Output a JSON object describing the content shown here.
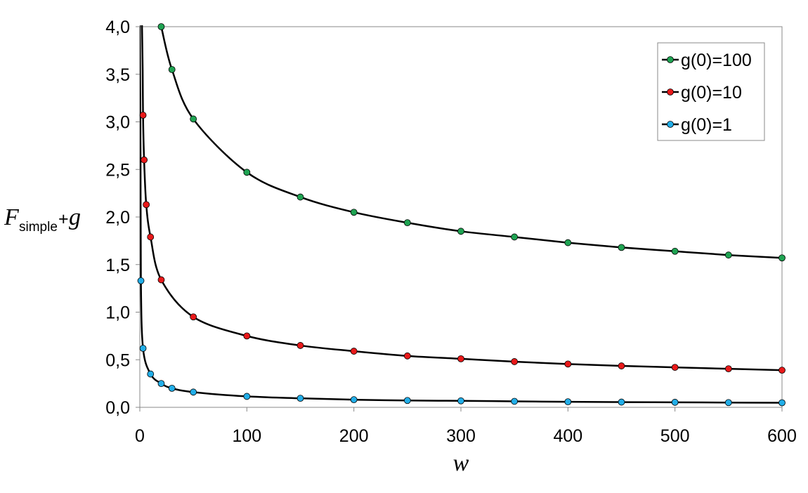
{
  "chart_data": {
    "type": "line",
    "title": "",
    "xlabel": "w",
    "ylabel": {
      "main": "F",
      "subscript": "simple",
      "operator": "+",
      "tail": "g"
    },
    "xlim": [
      0,
      600
    ],
    "ylim": [
      0,
      4.0
    ],
    "x_ticks": [
      "0",
      "100",
      "200",
      "300",
      "400",
      "500",
      "600"
    ],
    "y_ticks": [
      "0,0",
      "0,5",
      "1,0",
      "1,5",
      "2,0",
      "2,5",
      "3,0",
      "3,5",
      "4,0"
    ],
    "grid": false,
    "legend_position": "top-right",
    "series": [
      {
        "name": "g(0)=100",
        "color": "#1fa352",
        "x": [
          20,
          30,
          50,
          100,
          150,
          200,
          250,
          300,
          350,
          400,
          450,
          500,
          550,
          600
        ],
        "y": [
          4.0,
          3.55,
          3.03,
          2.47,
          2.21,
          2.05,
          1.94,
          1.85,
          1.79,
          1.73,
          1.68,
          1.64,
          1.6,
          1.57
        ]
      },
      {
        "name": "g(0)=10",
        "color": "#e8191a",
        "x": [
          3,
          4,
          6,
          10,
          20,
          50,
          100,
          150,
          200,
          250,
          300,
          350,
          400,
          450,
          500,
          550,
          600
        ],
        "y": [
          3.07,
          2.6,
          2.13,
          1.79,
          1.34,
          0.95,
          0.75,
          0.65,
          0.59,
          0.54,
          0.51,
          0.48,
          0.455,
          0.435,
          0.42,
          0.405,
          0.39
        ]
      },
      {
        "name": "g(0)=1",
        "color": "#22aee8",
        "x": [
          1,
          3,
          10,
          20,
          30,
          50,
          100,
          150,
          200,
          250,
          300,
          350,
          400,
          450,
          500,
          550,
          600
        ],
        "y": [
          1.33,
          0.62,
          0.35,
          0.25,
          0.2,
          0.16,
          0.115,
          0.095,
          0.08,
          0.072,
          0.068,
          0.063,
          0.058,
          0.055,
          0.053,
          0.05,
          0.048
        ]
      }
    ]
  }
}
